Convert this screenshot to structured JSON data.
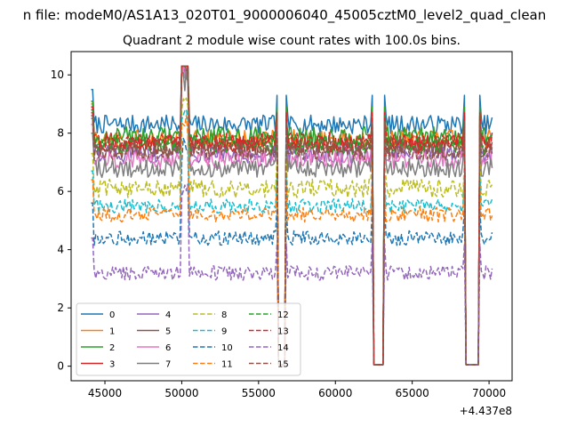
{
  "figure": {
    "suptitle": "n file: modeM0/AS1A13_020T01_9000006040_45005cztM0_level2_quad_clean"
  },
  "chart_data": {
    "type": "line",
    "title": "Quadrant 2 module wise count rates with 100.0s bins.",
    "xlabel": "",
    "ylabel": "",
    "x_offset_text": "+4.437e8",
    "xlim": [
      42800,
      71500
    ],
    "ylim": [
      -0.5,
      10.8
    ],
    "xticks": [
      45000,
      50000,
      55000,
      60000,
      65000,
      70000
    ],
    "yticks": [
      0,
      2,
      4,
      6,
      8,
      10
    ],
    "xtick_labels": [
      "45000",
      "50000",
      "55000",
      "60000",
      "65000",
      "70000"
    ],
    "ytick_labels": [
      "0",
      "2",
      "4",
      "6",
      "8",
      "10"
    ],
    "x_start": 44100,
    "x_end": 70200,
    "bin_size": 100,
    "gaps": [
      [
        56300,
        56700
      ],
      [
        62500,
        63100
      ],
      [
        68500,
        69300
      ]
    ],
    "grid": false,
    "legend": {
      "location": "lower left",
      "ncol": 4
    },
    "series": [
      {
        "name": "0",
        "color": "#1f77b4",
        "linestyle": "solid",
        "level": 8.3
      },
      {
        "name": "1",
        "color": "#ff7f0e",
        "linestyle": "solid",
        "level": 7.8
      },
      {
        "name": "2",
        "color": "#2ca02c",
        "linestyle": "solid",
        "level": 7.9
      },
      {
        "name": "3",
        "color": "#d62728",
        "linestyle": "solid",
        "level": 7.6
      },
      {
        "name": "4",
        "color": "#9467bd",
        "linestyle": "solid",
        "level": 7.3
      },
      {
        "name": "5",
        "color": "#8c564b",
        "linestyle": "solid",
        "level": 7.5
      },
      {
        "name": "6",
        "color": "#e377c2",
        "linestyle": "solid",
        "level": 7.1
      },
      {
        "name": "7",
        "color": "#7f7f7f",
        "linestyle": "solid",
        "level": 6.8
      },
      {
        "name": "8",
        "color": "#bcbd22",
        "linestyle": "dashed",
        "level": 6.1
      },
      {
        "name": "9",
        "color": "#17becf",
        "linestyle": "dashed",
        "level": 5.5
      },
      {
        "name": "10",
        "color": "#1f77b4",
        "linestyle": "dashed",
        "level": 4.4
      },
      {
        "name": "11",
        "color": "#ff7f0e",
        "linestyle": "dashed",
        "level": 5.2
      },
      {
        "name": "12",
        "color": "#2ca02c",
        "linestyle": "dashed",
        "level": 7.6
      },
      {
        "name": "13",
        "color": "#d62728",
        "linestyle": "dashed",
        "level": 7.7
      },
      {
        "name": "14",
        "color": "#9467bd",
        "linestyle": "dashed",
        "level": 3.2
      },
      {
        "name": "15",
        "color": "#8c564b",
        "linestyle": "dashed",
        "level": 7.4
      }
    ]
  }
}
